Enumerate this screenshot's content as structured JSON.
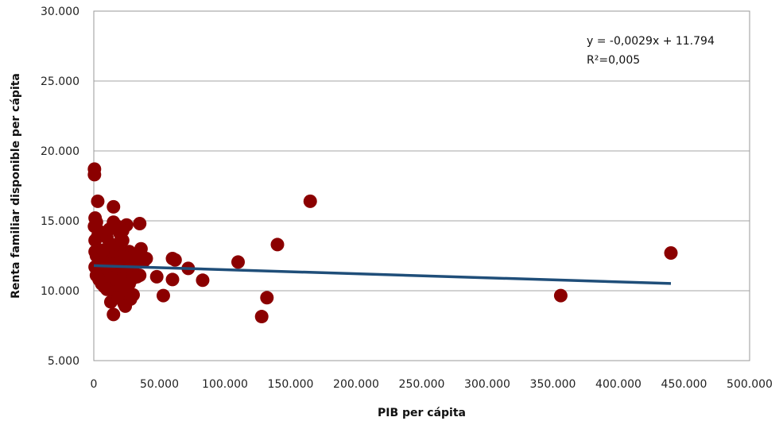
{
  "chart_data": {
    "type": "scatter",
    "xlabel": "PIB per cápita",
    "ylabel": "Renta familiar disponible per cápita",
    "xlim": [
      0,
      500000
    ],
    "ylim": [
      5000,
      30000
    ],
    "x_ticks": [
      0,
      50000,
      100000,
      150000,
      200000,
      250000,
      300000,
      350000,
      400000,
      450000,
      500000
    ],
    "x_tick_labels": [
      "0",
      "50.000",
      "100.000",
      "150.000",
      "200.000",
      "250.000",
      "300.000",
      "350.000",
      "400.000",
      "450.000",
      "500.000"
    ],
    "y_ticks": [
      5000,
      10000,
      15000,
      20000,
      25000,
      30000
    ],
    "y_tick_labels": [
      "5.000",
      "10.000",
      "15.000",
      "20.000",
      "25.000",
      "30.000"
    ],
    "grid": "horizontal",
    "point_color": "#8B0000",
    "trend_color": "#1F4E79",
    "annotation_equation": "y = -0,0029x + 11.794",
    "annotation_r2": "R²=0,005",
    "trendline": {
      "x": [
        0,
        440000
      ],
      "y": [
        11794,
        10518
      ]
    },
    "points": [
      [
        500,
        18700
      ],
      [
        500,
        18300
      ],
      [
        3000,
        16400
      ],
      [
        15000,
        16000
      ],
      [
        165000,
        16400
      ],
      [
        1000,
        15200
      ],
      [
        2000,
        14900
      ],
      [
        500,
        14600
      ],
      [
        35000,
        14800
      ],
      [
        25000,
        14700
      ],
      [
        15000,
        14900
      ],
      [
        18000,
        14600
      ],
      [
        22000,
        14300
      ],
      [
        1000,
        13600
      ],
      [
        3000,
        13900
      ],
      [
        5000,
        14200
      ],
      [
        8000,
        14000
      ],
      [
        10000,
        13800
      ],
      [
        12000,
        14400
      ],
      [
        20000,
        14100
      ],
      [
        140000,
        13300
      ],
      [
        36000,
        13000
      ],
      [
        27000,
        12800
      ],
      [
        30000,
        12500
      ],
      [
        40000,
        12300
      ],
      [
        60000,
        12300
      ],
      [
        62000,
        12200
      ],
      [
        440000,
        12700
      ],
      [
        110000,
        12050
      ],
      [
        1000,
        12800
      ],
      [
        2000,
        12500
      ],
      [
        4000,
        12300
      ],
      [
        6000,
        12700
      ],
      [
        9000,
        12100
      ],
      [
        11000,
        12600
      ],
      [
        13000,
        12200
      ],
      [
        16000,
        12500
      ],
      [
        19000,
        12900
      ],
      [
        21000,
        12100
      ],
      [
        24000,
        12400
      ],
      [
        28000,
        12000
      ],
      [
        32000,
        12200
      ],
      [
        38000,
        12100
      ],
      [
        1000,
        11700
      ],
      [
        3000,
        11400
      ],
      [
        5000,
        11800
      ],
      [
        7000,
        11200
      ],
      [
        9000,
        11600
      ],
      [
        12000,
        11300
      ],
      [
        14000,
        11900
      ],
      [
        17000,
        11500
      ],
      [
        20000,
        11800
      ],
      [
        23000,
        11200
      ],
      [
        26000,
        11600
      ],
      [
        30000,
        11400
      ],
      [
        35000,
        11100
      ],
      [
        72000,
        11600
      ],
      [
        48000,
        11000
      ],
      [
        60000,
        10800
      ],
      [
        83000,
        10750
      ],
      [
        2000,
        11100
      ],
      [
        4000,
        10800
      ],
      [
        6000,
        10500
      ],
      [
        8000,
        10300
      ],
      [
        10000,
        10700
      ],
      [
        13000,
        10900
      ],
      [
        15000,
        10400
      ],
      [
        18000,
        10600
      ],
      [
        21000,
        10800
      ],
      [
        24000,
        10200
      ],
      [
        27000,
        10500
      ],
      [
        30000,
        10900
      ],
      [
        10000,
        10100
      ],
      [
        16000,
        9900
      ],
      [
        20000,
        10000
      ],
      [
        25000,
        9800
      ],
      [
        30000,
        9700
      ],
      [
        13000,
        9200
      ],
      [
        19000,
        9500
      ],
      [
        23000,
        9100
      ],
      [
        28000,
        9400
      ],
      [
        53000,
        9650
      ],
      [
        132000,
        9500
      ],
      [
        356000,
        9650
      ],
      [
        24000,
        8900
      ],
      [
        15000,
        8300
      ],
      [
        128000,
        8150
      ],
      [
        33000,
        11000
      ],
      [
        17000,
        13300
      ],
      [
        11000,
        13100
      ],
      [
        7000,
        12900
      ],
      [
        22000,
        13600
      ]
    ]
  }
}
